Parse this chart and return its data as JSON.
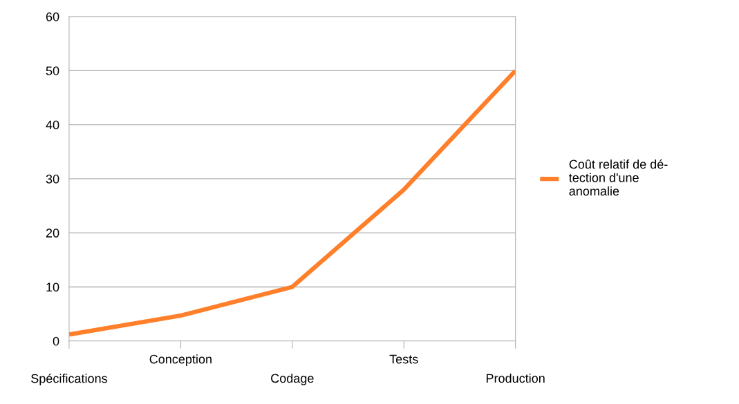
{
  "chart_data": {
    "type": "line",
    "categories": [
      "Spécifications",
      "Conception",
      "Codage",
      "Tests",
      "Production"
    ],
    "series": [
      {
        "name": "Coût relatif de dé-\ntection d'une\nanomalie",
        "color": "#ff7f2a",
        "values": [
          1.2,
          4.7,
          10,
          28,
          50
        ]
      }
    ],
    "ylim": [
      0,
      60
    ],
    "yticks": [
      0,
      10,
      20,
      30,
      40,
      50,
      60
    ],
    "grid": "y",
    "legend": "right",
    "marker": "none",
    "line_style": "solid"
  }
}
